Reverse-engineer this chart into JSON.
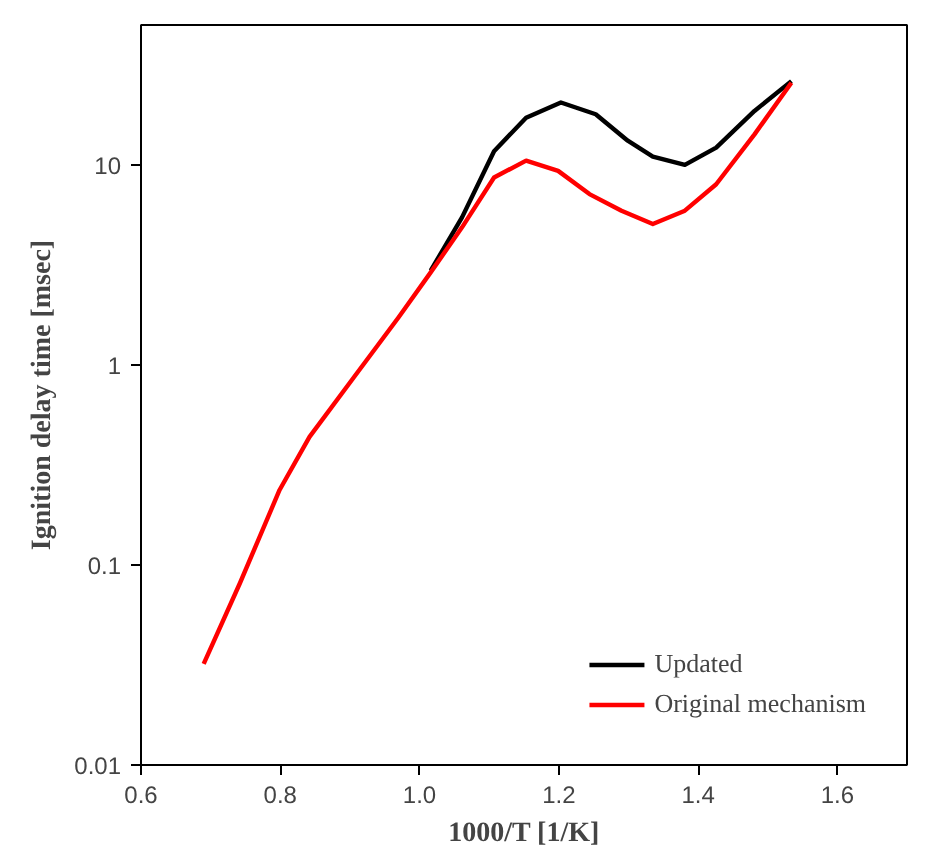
{
  "chart_data": {
    "type": "line",
    "xlabel": "1000/T [1/K]",
    "ylabel": "Ignition delay time [msec]",
    "log": "y",
    "grid": false,
    "legend": "bottom right",
    "marker": "none",
    "line_style": "solid",
    "xlim": [
      0.6,
      1.7
    ],
    "xticks": [
      {
        "value": 0.6,
        "label": "0.6"
      },
      {
        "value": 0.8,
        "label": "0.8"
      },
      {
        "value": 1.0,
        "label": "1.0"
      },
      {
        "value": 1.2,
        "label": "1.2"
      },
      {
        "value": 1.4,
        "label": "1.4"
      },
      {
        "value": 1.6,
        "label": "1.6"
      }
    ],
    "ylim": [
      0.01,
      50
    ],
    "yticks": [
      0.01,
      0.1,
      1,
      10
    ],
    "series": [
      {
        "name": "Updated",
        "color": "#000000",
        "x": [
          1.016,
          1.061,
          1.107,
          1.153,
          1.203,
          1.253,
          1.299,
          1.335,
          1.381,
          1.426,
          1.481,
          1.534
        ],
        "values": [
          2.96,
          5.46,
          11.7,
          17.2,
          20.5,
          17.9,
          13.2,
          11.0,
          10,
          12.2,
          18.6,
          26.2
        ]
      },
      {
        "name": "Original mechanism",
        "color": "#ff0000",
        "x": [
          0.69,
          0.742,
          0.799,
          0.842,
          0.906,
          0.97,
          1.016,
          1.061,
          1.107,
          1.153,
          1.199,
          1.244,
          1.29,
          1.335,
          1.381,
          1.426,
          1.481,
          1.534
        ],
        "values": [
          0.032,
          0.081,
          0.237,
          0.437,
          0.87,
          1.73,
          2.9,
          4.87,
          8.64,
          10.5,
          9.33,
          7.14,
          5.9,
          5.06,
          5.9,
          8.0,
          14.2,
          25.7
        ]
      }
    ]
  }
}
